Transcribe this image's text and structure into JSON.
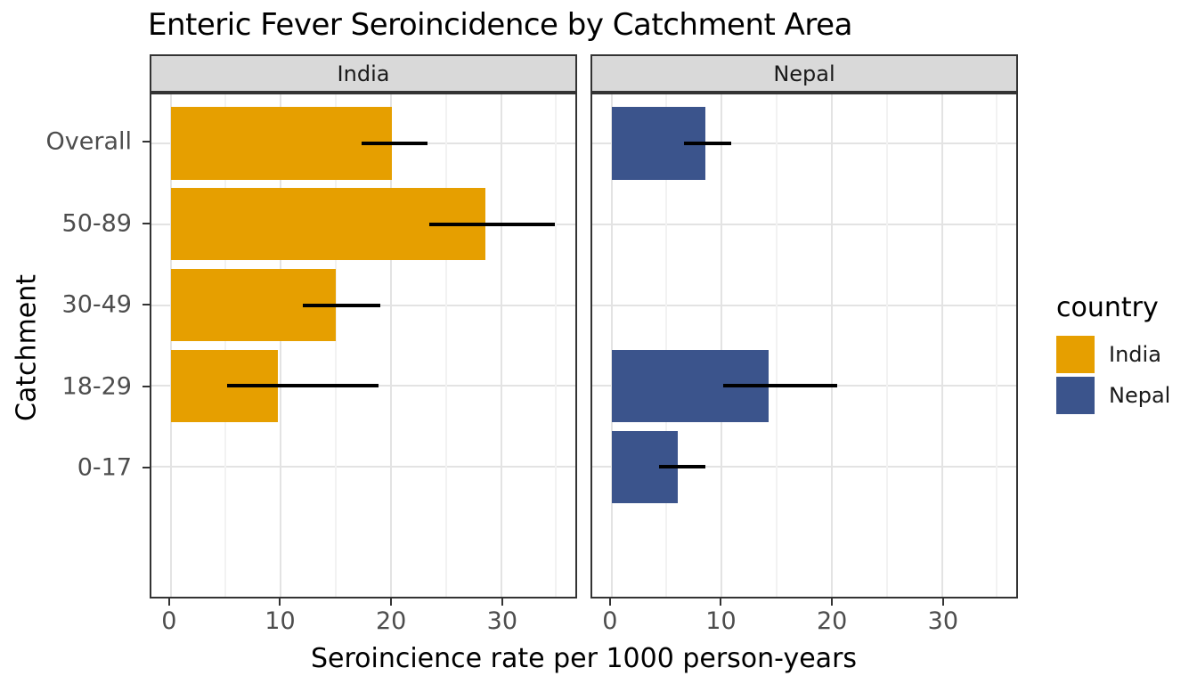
{
  "title": "Enteric Fever Seroincidence by Catchment Area",
  "colors": {
    "india_bar": "#E69F00",
    "nepal_bar": "#3B548C",
    "strip_fill": "#D9D9D9",
    "panel_border": "#333333",
    "grid_major": "#E3E3E3",
    "grid_minor": "#F2F2F2",
    "tick_label": "#4D4D4D",
    "errorbar": "#000000"
  },
  "chart_data": {
    "type": "bar",
    "orientation": "horizontal",
    "title": "Enteric Fever Seroincidence by Catchment Area",
    "xlabel": "Seroincience rate per 1000 person-years",
    "ylabel": "Catchment",
    "categories": [
      "Overall",
      "50-89",
      "30-49",
      "18-29",
      "0-17"
    ],
    "xlim": [
      0,
      35
    ],
    "x_expand": 0.05,
    "y_expand": 0.6,
    "bar_width": 0.9,
    "xticks": [
      0,
      10,
      20,
      30
    ],
    "x_minor": [
      5,
      15,
      25,
      35
    ],
    "grid": "on",
    "legend_position": "right",
    "facets": [
      {
        "name": "India",
        "color": "#E69F00",
        "bars": [
          {
            "category": "Overall",
            "value": 20.1,
            "ci_low": 17.3,
            "ci_high": 23.3
          },
          {
            "category": "50-89",
            "value": 28.6,
            "ci_low": 23.5,
            "ci_high": 34.9
          },
          {
            "category": "30-49",
            "value": 15.0,
            "ci_low": 12.0,
            "ci_high": 19.0
          },
          {
            "category": "18-29",
            "value": 9.7,
            "ci_low": 5.1,
            "ci_high": 18.9
          }
        ]
      },
      {
        "name": "Nepal",
        "color": "#3B548C",
        "bars": [
          {
            "category": "Overall",
            "value": 8.5,
            "ci_low": 6.6,
            "ci_high": 10.9
          },
          {
            "category": "18-29",
            "value": 14.3,
            "ci_low": 10.1,
            "ci_high": 20.5
          },
          {
            "category": "0-17",
            "value": 6.0,
            "ci_low": 4.3,
            "ci_high": 8.5
          }
        ]
      }
    ],
    "legend": {
      "title": "country",
      "entries": [
        {
          "label": "India",
          "color": "#E69F00"
        },
        {
          "label": "Nepal",
          "color": "#3B548C"
        }
      ]
    }
  }
}
